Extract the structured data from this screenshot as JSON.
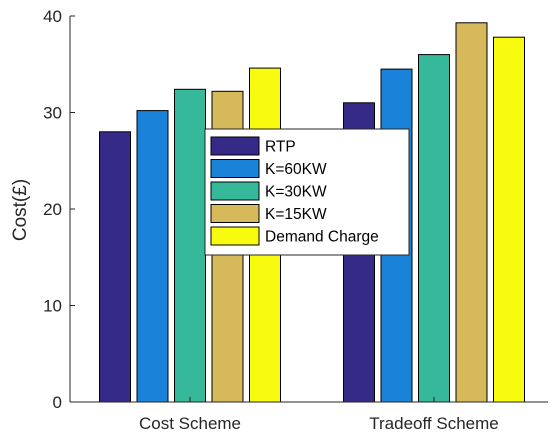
{
  "chart_data": {
    "type": "bar",
    "categories": [
      "Cost Scheme",
      "Tradeoff Scheme"
    ],
    "series": [
      {
        "name": "RTP",
        "color": "#352a87",
        "values": [
          28.0,
          31.0
        ]
      },
      {
        "name": "K=60KW",
        "color": "#1a82d8",
        "values": [
          30.2,
          34.5
        ]
      },
      {
        "name": "K=30KW",
        "color": "#36b99b",
        "values": [
          32.4,
          36.0
        ]
      },
      {
        "name": "K=15KW",
        "color": "#d5b95b",
        "values": [
          32.2,
          39.3
        ]
      },
      {
        "name": "Demand Charge",
        "color": "#f9fb0e",
        "values": [
          34.6,
          37.8
        ]
      }
    ],
    "title": "",
    "xlabel": "",
    "ylabel": "Cost(£)",
    "ylim": [
      0,
      40
    ],
    "yticks": [
      "0",
      "10",
      "20",
      "30",
      "40"
    ],
    "grid": false,
    "legend_position": "center"
  }
}
